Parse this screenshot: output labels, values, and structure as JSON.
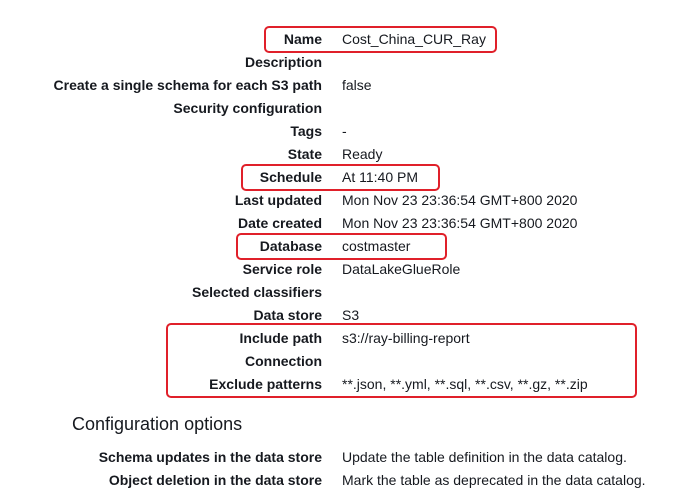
{
  "details": [
    {
      "label": "Name",
      "value": "Cost_China_CUR_Ray"
    },
    {
      "label": "Description",
      "value": ""
    },
    {
      "label": "Create a single schema for each S3 path",
      "value": "false"
    },
    {
      "label": "Security configuration",
      "value": ""
    },
    {
      "label": "Tags",
      "value": "-"
    },
    {
      "label": "State",
      "value": "Ready"
    },
    {
      "label": "Schedule",
      "value": "At 11:40 PM"
    },
    {
      "label": "Last updated",
      "value": "Mon Nov 23 23:36:54 GMT+800 2020"
    },
    {
      "label": "Date created",
      "value": "Mon Nov 23 23:36:54 GMT+800 2020"
    },
    {
      "label": "Database",
      "value": "costmaster"
    },
    {
      "label": "Service role",
      "value": "DataLakeGlueRole"
    },
    {
      "label": "Selected classifiers",
      "value": ""
    },
    {
      "label": "Data store",
      "value": "S3"
    },
    {
      "label": "Include path",
      "value": "s3://ray-billing-report"
    },
    {
      "label": "Connection",
      "value": ""
    },
    {
      "label": "Exclude patterns",
      "value": "**.json, **.yml, **.sql, **.csv, **.gz, **.zip"
    }
  ],
  "configuration": {
    "title": "Configuration options",
    "rows": [
      {
        "label": "Schema updates in the data store",
        "value": "Update the table definition in the data catalog."
      },
      {
        "label": "Object deletion in the data store",
        "value": "Mark the table as deprecated in the data catalog."
      }
    ]
  },
  "colors": {
    "highlight": "#e0202a",
    "text": "#16191f"
  }
}
